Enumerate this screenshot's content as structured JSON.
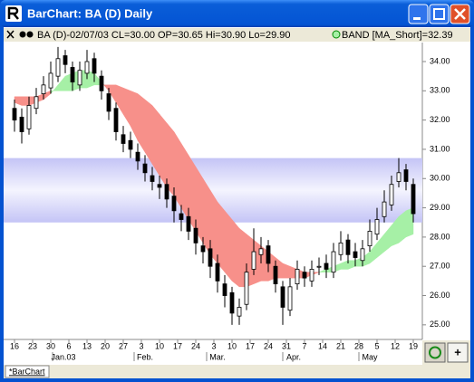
{
  "window": {
    "title": "BarChart: BA (D) Daily"
  },
  "info_bar": {
    "quote": "BA (D)-02/07/03 CL=30.00 OP=30.65 Hi=30.90 Lo=29.90",
    "indicator": "BAND [MA_Short]=32.39"
  },
  "buttons": {
    "add": "+"
  },
  "tab": "*BarChart",
  "chart_data": {
    "type": "candlestick",
    "x": [
      0,
      2,
      4,
      6,
      8,
      10,
      12,
      14,
      16,
      18,
      20,
      22,
      24,
      26,
      28,
      30,
      32,
      34,
      36,
      38,
      40,
      42,
      44,
      46,
      48,
      50,
      52,
      54,
      56,
      58,
      60,
      62,
      64,
      66,
      68,
      70,
      72,
      74,
      76,
      78,
      80,
      82,
      84,
      86,
      88,
      90,
      92,
      94,
      96,
      98,
      100,
      102,
      104,
      106,
      108,
      110
    ],
    "open": [
      32.4,
      32.1,
      31.7,
      32.4,
      32.9,
      33.1,
      33.5,
      34.2,
      33.8,
      33.2,
      33.6,
      34.1,
      33.5,
      32.9,
      32.4,
      31.5,
      31.3,
      30.9,
      30.5,
      30.1,
      29.8,
      29.8,
      29.4,
      28.8,
      28.7,
      28.3,
      27.7,
      27.6,
      27.1,
      26.4,
      26.1,
      25.3,
      25.7,
      26.9,
      27.4,
      27.7,
      27.0,
      26.3,
      25.5,
      26.4,
      26.8,
      26.5,
      27.0,
      27.1,
      26.8,
      27.4,
      27.9,
      27.5,
      27.2,
      27.7,
      28.1,
      28.7,
      29.1,
      29.9,
      30.3,
      29.8
    ],
    "high": [
      32.7,
      32.4,
      32.8,
      33.1,
      33.5,
      34.0,
      34.5,
      34.4,
      34.0,
      34.0,
      34.4,
      34.3,
      33.7,
      33.1,
      32.6,
      31.8,
      31.6,
      31.2,
      30.8,
      30.4,
      30.1,
      30.0,
      29.7,
      29.1,
      29.0,
      28.6,
      28.0,
      27.9,
      27.4,
      26.7,
      26.3,
      25.9,
      27.1,
      28.3,
      28.0,
      27.9,
      27.2,
      26.5,
      26.6,
      27.2,
      27.0,
      27.2,
      27.3,
      27.4,
      27.8,
      28.2,
      28.1,
      27.8,
      27.9,
      28.6,
      29.0,
      29.6,
      30.1,
      30.7,
      30.5,
      30.0
    ],
    "low": [
      31.6,
      31.2,
      31.5,
      32.2,
      32.7,
      32.9,
      33.3,
      33.6,
      33.0,
      33.0,
      33.4,
      33.3,
      32.7,
      32.0,
      31.3,
      30.9,
      30.7,
      30.3,
      29.9,
      29.6,
      29.3,
      29.0,
      28.5,
      28.2,
      27.9,
      27.4,
      27.1,
      26.6,
      26.1,
      25.6,
      25.0,
      25.0,
      25.5,
      26.7,
      27.1,
      26.8,
      26.1,
      25.0,
      25.3,
      26.2,
      26.3,
      26.3,
      26.7,
      26.6,
      26.6,
      27.2,
      27.1,
      27.0,
      27.0,
      27.5,
      27.9,
      28.5,
      28.9,
      29.7,
      29.6,
      28.5
    ],
    "close": [
      32.0,
      31.6,
      32.5,
      32.8,
      33.2,
      33.6,
      34.1,
      33.9,
      33.3,
      33.7,
      34.0,
      33.6,
      33.0,
      32.3,
      31.6,
      31.2,
      31.0,
      30.6,
      30.2,
      29.9,
      29.7,
      29.3,
      28.9,
      28.6,
      28.2,
      27.8,
      27.5,
      27.0,
      26.5,
      26.0,
      25.4,
      25.6,
      26.8,
      27.5,
      27.6,
      27.1,
      26.4,
      25.6,
      26.3,
      26.9,
      26.6,
      26.9,
      27.0,
      26.9,
      27.5,
      27.8,
      27.4,
      27.3,
      27.6,
      28.2,
      28.6,
      29.2,
      29.8,
      30.2,
      29.9,
      28.8
    ],
    "ma_short": [
      32.6,
      32.5,
      32.5,
      32.6,
      32.7,
      32.9,
      33.2,
      33.5,
      33.6,
      33.7,
      33.7,
      33.6,
      33.3,
      33.0,
      32.6,
      32.2,
      31.8,
      31.3,
      30.9,
      30.5,
      30.1,
      29.7,
      29.4,
      29.0,
      28.6,
      28.2,
      27.8,
      27.4,
      27.1,
      26.8,
      26.5,
      26.3,
      26.3,
      26.4,
      26.5,
      26.5,
      26.6,
      26.6,
      26.6,
      26.6,
      26.6,
      26.7,
      26.8,
      26.9,
      27.0,
      27.1,
      27.2,
      27.2,
      27.3,
      27.5,
      27.8,
      28.1,
      28.4,
      28.7,
      28.9,
      29.0
    ],
    "ma_long": [
      32.8,
      32.8,
      32.8,
      32.8,
      32.9,
      33.0,
      33.0,
      33.0,
      33.0,
      33.1,
      33.1,
      33.2,
      33.2,
      33.2,
      33.2,
      33.1,
      33.0,
      32.9,
      32.7,
      32.5,
      32.2,
      31.9,
      31.6,
      31.2,
      30.8,
      30.4,
      30.0,
      29.6,
      29.2,
      28.9,
      28.6,
      28.3,
      28.1,
      27.9,
      27.7,
      27.5,
      27.3,
      27.1,
      27.0,
      26.9,
      26.8,
      26.8,
      26.8,
      26.8,
      26.8,
      26.9,
      26.9,
      27.0,
      27.0,
      27.1,
      27.3,
      27.5,
      27.7,
      27.8,
      28.0,
      28.1
    ],
    "band_colors": {
      "above": "#a6f0a6",
      "below": "#f7908a"
    },
    "highlight_band": [
      28.5,
      30.7
    ],
    "xlim": [
      -3,
      112.5
    ],
    "xticks": [
      {
        "value": 0,
        "label": "16"
      },
      {
        "value": 5,
        "label": "23"
      },
      {
        "value": 10,
        "label": "30"
      },
      {
        "value": 15,
        "label": "6"
      },
      {
        "value": 20,
        "label": "13"
      },
      {
        "value": 25,
        "label": "20"
      },
      {
        "value": 30,
        "label": "27"
      },
      {
        "value": 35,
        "label": "3"
      },
      {
        "value": 40,
        "label": "10"
      },
      {
        "value": 45,
        "label": "17"
      },
      {
        "value": 50,
        "label": "24"
      },
      {
        "value": 55,
        "label": "3"
      },
      {
        "value": 60,
        "label": "10"
      },
      {
        "value": 65,
        "label": "17"
      },
      {
        "value": 70,
        "label": "24"
      },
      {
        "value": 75,
        "label": "31"
      },
      {
        "value": 80,
        "label": "7"
      },
      {
        "value": 85,
        "label": "14"
      },
      {
        "value": 90,
        "label": "21"
      },
      {
        "value": 95,
        "label": "28"
      },
      {
        "value": 100,
        "label": "5"
      },
      {
        "value": 105,
        "label": "12"
      },
      {
        "value": 110,
        "label": "19"
      }
    ],
    "month_ticks": [
      {
        "value": 13.5,
        "label": "Jan.03"
      },
      {
        "value": 36,
        "label": "Feb."
      },
      {
        "value": 56,
        "label": "Mar."
      },
      {
        "value": 77,
        "label": "Apr."
      },
      {
        "value": 98,
        "label": "May"
      }
    ],
    "ylim": [
      24.5,
      34.65
    ],
    "yticks": [
      {
        "value": 25,
        "label": "25.00"
      },
      {
        "value": 26,
        "label": "26.00"
      },
      {
        "value": 27,
        "label": "27.00"
      },
      {
        "value": 28,
        "label": "28.00"
      },
      {
        "value": 29,
        "label": "29.00"
      },
      {
        "value": 30,
        "label": "30.00"
      },
      {
        "value": 31,
        "label": "31.00"
      },
      {
        "value": 32,
        "label": "32.00"
      },
      {
        "value": 33,
        "label": "33.00"
      },
      {
        "value": 34,
        "label": "34.00"
      }
    ]
  }
}
